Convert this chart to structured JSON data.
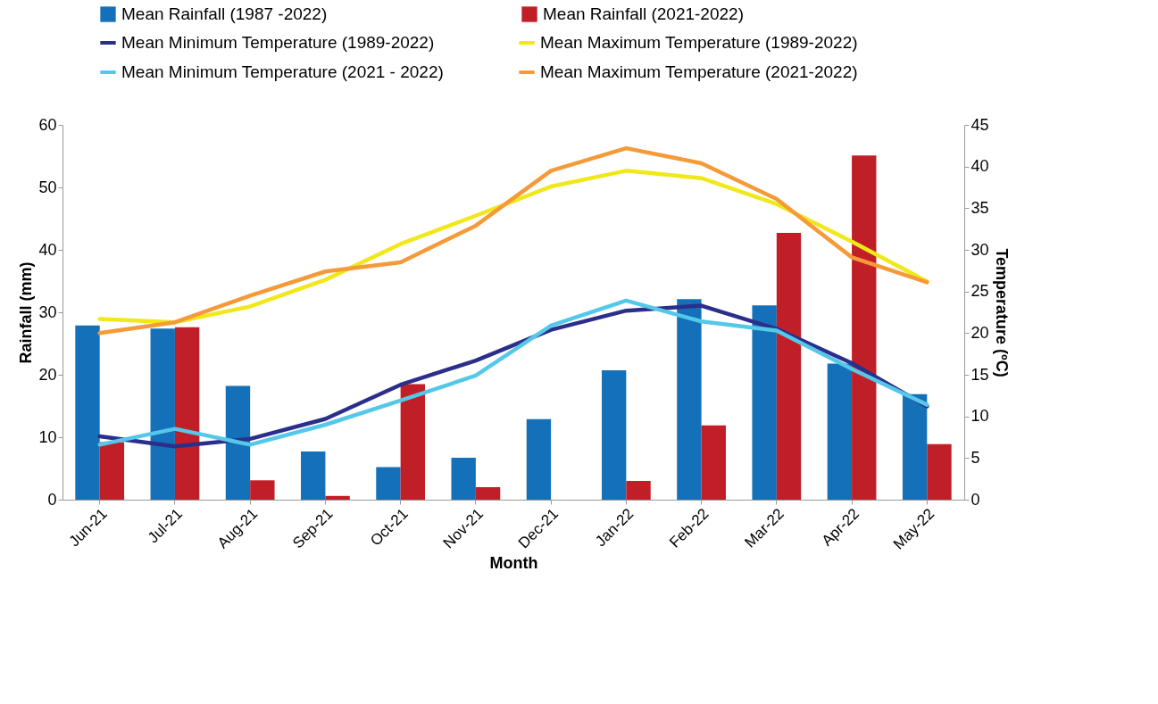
{
  "chart_data": {
    "type": "bar",
    "xlabel": "Month",
    "ylabel": "Rainfall (mm)",
    "y2label": "Temperature (ºC)",
    "categories": [
      "Jun-21",
      "Jul-21",
      "Aug-21",
      "Sep-21",
      "Oct-21",
      "Nov-21",
      "Dec-21",
      "Jan-22",
      "Feb-22",
      "Mar-22",
      "Apr-22",
      "May-22"
    ],
    "ylim": [
      0,
      60
    ],
    "yticks": [
      0,
      10,
      20,
      30,
      40,
      50,
      60
    ],
    "y2lim": [
      0,
      45
    ],
    "y2ticks": [
      0,
      5,
      10,
      15,
      20,
      25,
      30,
      35,
      40,
      45
    ],
    "grid": false,
    "legend": "top",
    "line_style": "solid",
    "marker": "none",
    "series": [
      {
        "name": "Mean Rainfall (1987 -2022)",
        "color": "#1470b8",
        "values": [
          27.9,
          27.4,
          18.2,
          7.7,
          5.2,
          6.7,
          12.9,
          20.7,
          32.1,
          31.1,
          21.8,
          16.9
        ]
      },
      {
        "name": "Mean Rainfall (2021-2022)",
        "color": "#c01f27",
        "values": [
          9.2,
          27.6,
          3.1,
          0.6,
          18.5,
          2.0,
          0,
          3.0,
          11.9,
          42.7,
          55.1,
          8.9
        ]
      },
      {
        "name": "Mean Minimum Temperature (1989-2022)",
        "type": "line",
        "axis": "y2",
        "color": "#2b2e8a",
        "values": [
          7.6,
          6.4,
          7.3,
          9.7,
          13.8,
          16.7,
          20.4,
          22.7,
          23.3,
          20.5,
          16.4,
          11.2
        ]
      },
      {
        "name": "Mean Maximum Temperature (1989-2022)",
        "type": "line",
        "axis": "y2",
        "color": "#f0e81a",
        "values": [
          21.7,
          21.3,
          23.2,
          26.4,
          30.7,
          34.1,
          37.6,
          39.5,
          38.6,
          35.5,
          31.0,
          26.2
        ]
      },
      {
        "name": "Mean Minimum Temperature (2021 - 2022)",
        "type": "line",
        "axis": "y2",
        "color": "#55c8ea",
        "values": [
          6.6,
          8.5,
          6.6,
          9.0,
          11.9,
          14.9,
          20.9,
          23.9,
          21.4,
          20.3,
          15.7,
          11.4
        ]
      },
      {
        "name": "Mean Maximum Temperature (2021-2022)",
        "type": "line",
        "axis": "y2",
        "color": "#f59a38",
        "values": [
          20.0,
          21.3,
          24.5,
          27.4,
          28.5,
          32.9,
          39.5,
          42.2,
          40.4,
          36.1,
          29.1,
          26.1
        ]
      }
    ]
  }
}
